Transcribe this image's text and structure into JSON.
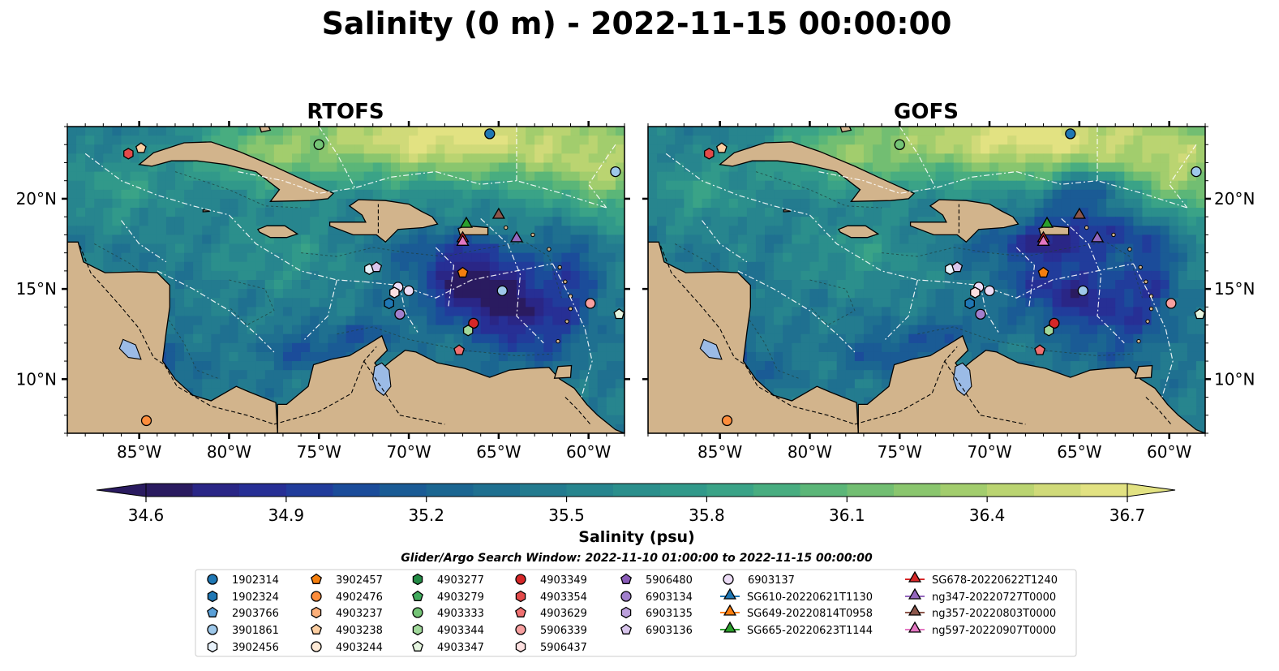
{
  "title": "Salinity (0 m) - 2022-11-15 00:00:00",
  "panels": [
    {
      "title": "RTOFS",
      "variant": 0
    },
    {
      "title": "GOFS",
      "variant": 1
    }
  ],
  "map": {
    "lon_range": [
      -89,
      -58
    ],
    "lat_range": [
      7,
      24
    ],
    "lon_ticks": [
      {
        "value": -85,
        "label": "85°W"
      },
      {
        "value": -80,
        "label": "80°W"
      },
      {
        "value": -75,
        "label": "75°W"
      },
      {
        "value": -70,
        "label": "70°W"
      },
      {
        "value": -65,
        "label": "65°W"
      },
      {
        "value": -60,
        "label": "60°W"
      }
    ],
    "lat_ticks": [
      {
        "value": 10,
        "label": "10°N"
      },
      {
        "value": 15,
        "label": "15°N"
      },
      {
        "value": 20,
        "label": "20°N"
      }
    ],
    "colors": {
      "land": "#d2b48c",
      "lake": "#9bbbe6",
      "coast": "#000000",
      "eez": "#ffffff"
    }
  },
  "colorbar": {
    "label": "Salinity (psu)",
    "min": 34.6,
    "max": 36.7,
    "ticks": [
      "34.6",
      "34.9",
      "35.2",
      "35.5",
      "35.8",
      "36.1",
      "36.4",
      "36.7"
    ],
    "colors": [
      "#2a1b60",
      "#2a2686",
      "#272f95",
      "#213c9b",
      "#1b4c9a",
      "#1a5b95",
      "#1b6691",
      "#1f7090",
      "#237b8f",
      "#27858e",
      "#2b8f8c",
      "#31998a",
      "#3aa387",
      "#48ad80",
      "#5bb678",
      "#72be72",
      "#8ac66e",
      "#a2cd6d",
      "#bad471",
      "#d0da79",
      "#e2e282"
    ]
  },
  "search_window": "Glider/Argo Search Window: 2022-11-10 01:00:00 to 2022-11-15 00:00:00",
  "legend": [
    {
      "label": "1902314",
      "marker": "circle",
      "color": "#1f77b4"
    },
    {
      "label": "1902324",
      "marker": "hexagon",
      "color": "#1f77b4"
    },
    {
      "label": "2903766",
      "marker": "pentagon",
      "color": "#5aa0d8"
    },
    {
      "label": "3901861",
      "marker": "circle",
      "color": "#9ec8ea"
    },
    {
      "label": "3902456",
      "marker": "hexagon",
      "color": "#e8f2fb"
    },
    {
      "label": "3902457",
      "marker": "pentagon",
      "color": "#f57f0e"
    },
    {
      "label": "4902476",
      "marker": "circle",
      "color": "#fd8d3c"
    },
    {
      "label": "4903237",
      "marker": "hexagon",
      "color": "#fdb07a"
    },
    {
      "label": "4903238",
      "marker": "pentagon",
      "color": "#fdcfa2"
    },
    {
      "label": "4903244",
      "marker": "circle",
      "color": "#feead6"
    },
    {
      "label": "4903277",
      "marker": "hexagon",
      "color": "#238b45"
    },
    {
      "label": "4903279",
      "marker": "pentagon",
      "color": "#41ab5d"
    },
    {
      "label": "4903333",
      "marker": "circle",
      "color": "#74c476"
    },
    {
      "label": "4903344",
      "marker": "hexagon",
      "color": "#a1d99b"
    },
    {
      "label": "4903347",
      "marker": "pentagon",
      "color": "#e5f5e0"
    },
    {
      "label": "4903349",
      "marker": "circle",
      "color": "#d62728"
    },
    {
      "label": "4903354",
      "marker": "hexagon",
      "color": "#e34a4a"
    },
    {
      "label": "4903629",
      "marker": "pentagon",
      "color": "#f07070"
    },
    {
      "label": "5906339",
      "marker": "circle",
      "color": "#f7a0a0"
    },
    {
      "label": "5906437",
      "marker": "hexagon",
      "color": "#fde0e0"
    },
    {
      "label": "5906480",
      "marker": "pentagon",
      "color": "#8a5cb8"
    },
    {
      "label": "6903134",
      "marker": "circle",
      "color": "#a17fcc"
    },
    {
      "label": "6903135",
      "marker": "hexagon",
      "color": "#bca0dc"
    },
    {
      "label": "6903136",
      "marker": "pentagon",
      "color": "#d8c5ec"
    },
    {
      "label": "6903137",
      "marker": "circle",
      "color": "#ecdcf6"
    },
    {
      "label": "SG610-20220621T1130",
      "marker": "triangle",
      "color": "#1f77b4"
    },
    {
      "label": "SG649-20220814T0958",
      "marker": "triangle",
      "color": "#ff7f0e"
    },
    {
      "label": "SG665-20220623T1144",
      "marker": "triangle",
      "color": "#2ca02c"
    },
    {
      "label": "SG678-20220622T1240",
      "marker": "triangle",
      "color": "#d62728"
    },
    {
      "label": "ng347-20220727T0000",
      "marker": "triangle",
      "color": "#9467bd"
    },
    {
      "label": "ng357-20220803T0000",
      "marker": "triangle",
      "color": "#8c564b"
    },
    {
      "label": "ng597-20220907T0000",
      "marker": "triangle",
      "color": "#e377c2"
    }
  ],
  "floats": [
    {
      "id": "1902314",
      "lon": -65.5,
      "lat": 23.6
    },
    {
      "id": "3901861",
      "lon": -64.8,
      "lat": 14.9
    },
    {
      "id": "3901861",
      "lon": -58.5,
      "lat": 21.5
    },
    {
      "id": "3902456",
      "lon": -72.2,
      "lat": 16.1
    },
    {
      "id": "6903136",
      "lon": -71.8,
      "lat": 16.2
    },
    {
      "id": "1902324",
      "lon": -71.1,
      "lat": 14.2
    },
    {
      "id": "6903134",
      "lon": -70.5,
      "lat": 13.6
    },
    {
      "id": "6903137",
      "lon": -70.6,
      "lat": 15.1
    },
    {
      "id": "6903137",
      "lon": -70.0,
      "lat": 14.9
    },
    {
      "id": "5906437",
      "lon": -70.8,
      "lat": 14.8
    },
    {
      "id": "3902457",
      "lon": -67.0,
      "lat": 15.9
    },
    {
      "id": "4903349",
      "lon": -66.4,
      "lat": 13.1
    },
    {
      "id": "4903344",
      "lon": -66.7,
      "lat": 12.7
    },
    {
      "id": "4903629",
      "lon": -67.2,
      "lat": 11.6
    },
    {
      "id": "5906339",
      "lon": -59.9,
      "lat": 14.2
    },
    {
      "id": "4903347",
      "lon": -58.3,
      "lat": 13.6
    },
    {
      "id": "4903354",
      "lon": -85.6,
      "lat": 22.5
    },
    {
      "id": "4903238",
      "lon": -84.9,
      "lat": 22.8
    },
    {
      "id": "4903333",
      "lon": -75.0,
      "lat": 23.0
    },
    {
      "id": "4902476",
      "lon": -84.6,
      "lat": 7.7
    }
  ],
  "gliders": [
    {
      "id": "SG665-20220623T1144",
      "lon": -66.8,
      "lat": 18.6
    },
    {
      "id": "ng357-20220803T0000",
      "lon": -65.0,
      "lat": 19.1
    },
    {
      "id": "ng347-20220727T0000",
      "lon": -64.0,
      "lat": 17.8
    },
    {
      "id": "SG678-20220622T1240",
      "lon": -67.0,
      "lat": 17.8
    },
    {
      "id": "ng597-20220907T0000",
      "lon": -67.0,
      "lat": 17.6
    }
  ]
}
